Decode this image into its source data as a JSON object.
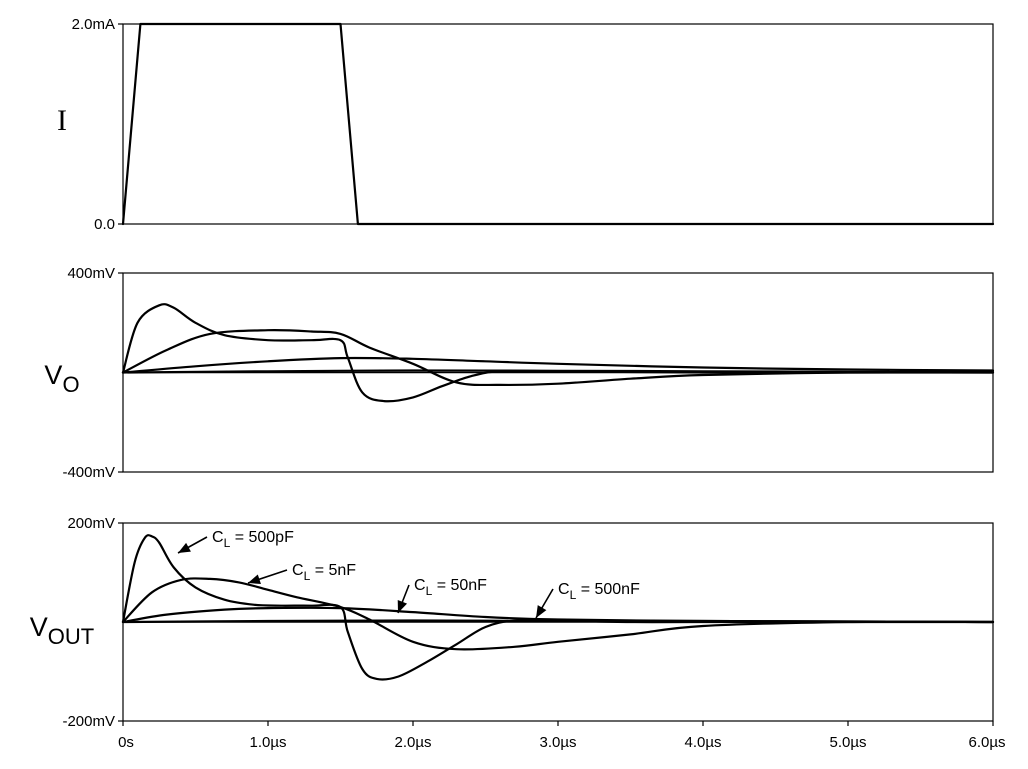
{
  "chart_data": [
    {
      "type": "line",
      "panel_label": "I",
      "x_unit": "s",
      "xlim": [
        0,
        6e-06
      ],
      "ylim": [
        0,
        0.002
      ],
      "y_ticks": [
        {
          "value": 0.002,
          "label": "2.0mA"
        },
        {
          "value": 0,
          "label": "0.0"
        }
      ],
      "series": [
        {
          "x": [
            0,
            1.2e-07,
            1.5e-06,
            1.62e-06,
            6e-06
          ],
          "y": [
            0,
            0.002,
            0.002,
            0,
            0
          ]
        }
      ]
    },
    {
      "type": "line",
      "panel_label": "V",
      "panel_label_sub": "O",
      "ylim": [
        -0.4,
        0.4
      ],
      "y_ticks": [
        {
          "value": 0.4,
          "label": "400mV"
        },
        {
          "value": -0.4,
          "label": "-400mV"
        }
      ],
      "series": [
        {
          "x": [
            0,
            1e-07,
            2.5e-07,
            3.5e-07,
            5e-07,
            7e-07,
            1e-06,
            1.3e-06,
            1.5e-06,
            1.55e-06,
            1.65e-06,
            1.8e-06,
            2e-06,
            2.2e-06,
            2.4e-06,
            2.6e-06,
            3e-06,
            4e-06,
            5e-06,
            6e-06
          ],
          "y": [
            0,
            0.2,
            0.27,
            0.26,
            0.2,
            0.15,
            0.13,
            0.13,
            0.13,
            0.06,
            -0.08,
            -0.115,
            -0.1,
            -0.055,
            -0.015,
            0.005,
            0.005,
            0.0,
            0.0,
            0.0
          ]
        },
        {
          "x": [
            0,
            3e-07,
            6e-07,
            1e-06,
            1.3e-06,
            1.5e-06,
            1.7e-06,
            2e-06,
            2.3e-06,
            2.6e-06,
            3e-06,
            3.5e-06,
            4e-06,
            5e-06,
            6e-06
          ],
          "y": [
            0,
            0.09,
            0.155,
            0.17,
            0.165,
            0.155,
            0.1,
            0.035,
            -0.04,
            -0.05,
            -0.045,
            -0.025,
            -0.01,
            0.0,
            0.0
          ]
        },
        {
          "x": [
            0,
            5e-07,
            1e-06,
            1.5e-06,
            2e-06,
            2.5e-06,
            3e-06,
            4e-06,
            5e-06,
            6e-06
          ],
          "y": [
            0,
            0.025,
            0.045,
            0.058,
            0.055,
            0.045,
            0.035,
            0.02,
            0.012,
            0.008
          ]
        },
        {
          "x": [
            0,
            1e-06,
            2e-06,
            3e-06,
            4e-06,
            5e-06,
            6e-06
          ],
          "y": [
            0,
            0.005,
            0.008,
            0.007,
            0.005,
            0.003,
            0.002
          ]
        }
      ]
    },
    {
      "type": "line",
      "panel_label": "V",
      "panel_label_sub": "OUT",
      "ylim": [
        -0.2,
        0.2
      ],
      "y_ticks": [
        {
          "value": 0.2,
          "label": "200mV"
        },
        {
          "value": -0.2,
          "label": "-200mV"
        }
      ],
      "x_ticks": [
        {
          "value": 0,
          "label": "0s"
        },
        {
          "value": 1e-06,
          "label": "1.0µs"
        },
        {
          "value": 2e-06,
          "label": "2.0µs"
        },
        {
          "value": 3e-06,
          "label": "3.0µs"
        },
        {
          "value": 4e-06,
          "label": "4.0µs"
        },
        {
          "value": 5e-06,
          "label": "5.0µs"
        },
        {
          "value": 6e-06,
          "label": "6.0µs"
        }
      ],
      "series": [
        {
          "name": "C_L = 500pF",
          "x": [
            0,
            8e-08,
            1.5e-07,
            2e-07,
            2.5e-07,
            3.5e-07,
            5e-07,
            7e-07,
            9e-07,
            1.1e-06,
            1.3e-06,
            1.5e-06,
            1.55e-06,
            1.65e-06,
            1.75e-06,
            1.9e-06,
            2.1e-06,
            2.3e-06,
            2.5e-06,
            2.7e-06,
            3e-06,
            3.5e-06,
            4e-06,
            5e-06,
            6e-06
          ],
          "y": [
            0,
            0.12,
            0.17,
            0.173,
            0.16,
            0.11,
            0.07,
            0.045,
            0.035,
            0.033,
            0.033,
            0.03,
            -0.02,
            -0.095,
            -0.115,
            -0.11,
            -0.08,
            -0.045,
            -0.01,
            0.003,
            0.003,
            0.0,
            0.0,
            0.0,
            0.0
          ]
        },
        {
          "name": "C_L = 5nF",
          "x": [
            0,
            2e-07,
            4e-07,
            6e-07,
            8e-07,
            1e-06,
            1.2e-06,
            1.5e-06,
            1.7e-06,
            2e-06,
            2.3e-06,
            2.7e-06,
            3e-06,
            3.5e-06,
            4e-06,
            5e-06,
            6e-06
          ],
          "y": [
            0,
            0.06,
            0.085,
            0.087,
            0.08,
            0.065,
            0.05,
            0.03,
            0.005,
            -0.04,
            -0.055,
            -0.05,
            -0.04,
            -0.025,
            -0.008,
            0.0,
            0.0
          ]
        },
        {
          "name": "C_L = 50nF",
          "x": [
            0,
            3e-07,
            7e-07,
            1e-06,
            1.5e-06,
            2e-06,
            2.5e-06,
            3e-06,
            4e-06,
            5e-06,
            6e-06
          ],
          "y": [
            0,
            0.015,
            0.025,
            0.028,
            0.028,
            0.02,
            0.01,
            0.005,
            0.002,
            0.001,
            0.0
          ]
        },
        {
          "name": "C_L = 500nF",
          "x": [
            0,
            1e-06,
            2e-06,
            3e-06,
            4e-06,
            5e-06,
            6e-06
          ],
          "y": [
            0,
            0.002,
            0.003,
            0.002,
            0.002,
            0.001,
            0.0
          ]
        }
      ]
    }
  ],
  "annotations": [
    {
      "text_main": "C",
      "text_sub": "L",
      "text_rest": " = 500pF",
      "target_series": 0,
      "target_x": 3.8e-07
    },
    {
      "text_main": "C",
      "text_sub": "L",
      "text_rest": " = 5nF",
      "target_series": 1,
      "target_x": 8.5e-07
    },
    {
      "text_main": "C",
      "text_sub": "L",
      "text_rest": " = 50nF",
      "target_series": 2,
      "target_x": 1.9e-06
    },
    {
      "text_main": "C",
      "text_sub": "L",
      "text_rest": " = 500nF",
      "target_series": 3,
      "target_x": 2.8e-06
    }
  ]
}
